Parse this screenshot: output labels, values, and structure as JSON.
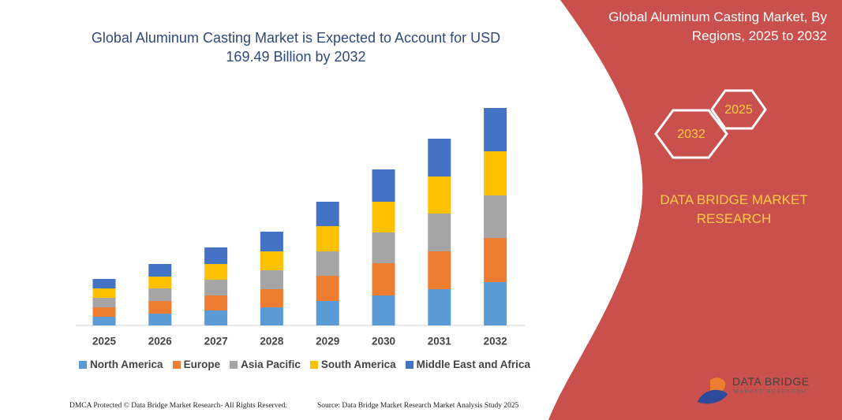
{
  "chart_data": {
    "type": "stacked_bar",
    "title": "Global Aluminum Casting Market is Expected to Account for USD 169.49 Billion by 2032",
    "categories": [
      "2025",
      "2026",
      "2027",
      "2028",
      "2029",
      "2030",
      "2031",
      "2032"
    ],
    "series": [
      {
        "name": "North America",
        "color": "#5b9bd5",
        "values": [
          11,
          15,
          19,
          23,
          31,
          38,
          46,
          55
        ]
      },
      {
        "name": "Europe",
        "color": "#ed7d31",
        "values": [
          12,
          16,
          19,
          23,
          32,
          41,
          48,
          56
        ]
      },
      {
        "name": "Asia Pacific",
        "color": "#a5a5a5",
        "values": [
          12,
          16,
          20,
          24,
          31,
          39,
          48,
          54
        ]
      },
      {
        "name": "South America",
        "color": "#ffc000",
        "values": [
          12,
          15,
          20,
          24,
          32,
          39,
          47,
          56
        ]
      },
      {
        "name": "Middle East and Africa",
        "color": "#4472c4",
        "values": [
          12,
          16,
          21,
          25,
          31,
          41,
          48,
          55
        ]
      }
    ]
  },
  "panel": {
    "title": "Global Aluminum Casting Market, By Regions, 2025 to 2032",
    "hex_left": "2032",
    "hex_right": "2025",
    "brand": "DATA BRIDGE MARKET RESEARCH"
  },
  "footer": {
    "dmca": "DMCA Protected © Data Bridge Market Research- All Rights Reserved.",
    "source": "Source: Data Bridge Market Research Market Analysis Study 2025"
  },
  "logo": {
    "name": "DATA BRIDGE",
    "subtitle": "MARKET RESEARCH"
  }
}
